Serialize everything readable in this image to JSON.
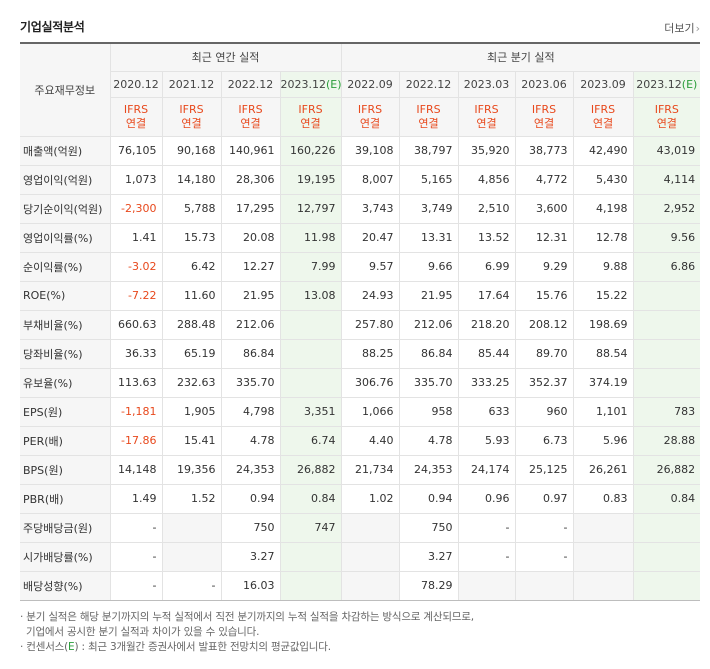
{
  "header": {
    "title": "기업실적분석",
    "more": "더보기",
    "more_arrow": "›"
  },
  "table": {
    "corner_label": "주요재무정보",
    "groups": {
      "annual": "최근 연간 실적",
      "quarterly": "최근 분기 실적"
    },
    "periods": [
      "2020.12",
      "2021.12",
      "2022.12",
      "2023.12",
      "2022.09",
      "2022.12",
      "2023.03",
      "2023.06",
      "2023.09",
      "2023.12"
    ],
    "estimate_mark": "(E)",
    "ifrs": {
      "line1": "IFRS",
      "line2": "연결"
    },
    "rows": [
      {
        "label": "매출액(억원)",
        "values": [
          "76,105",
          "90,168",
          "140,961",
          "160,226",
          "39,108",
          "38,797",
          "35,920",
          "38,773",
          "42,490",
          "43,019"
        ]
      },
      {
        "label": "영업이익(억원)",
        "values": [
          "1,073",
          "14,180",
          "28,306",
          "19,195",
          "8,007",
          "5,165",
          "4,856",
          "4,772",
          "5,430",
          "4,114"
        ]
      },
      {
        "label": "당기순이익(억원)",
        "values": [
          "-2,300",
          "5,788",
          "17,295",
          "12,797",
          "3,743",
          "3,749",
          "2,510",
          "3,600",
          "4,198",
          "2,952"
        ]
      },
      {
        "label": "영업이익률(%)",
        "values": [
          "1.41",
          "15.73",
          "20.08",
          "11.98",
          "20.47",
          "13.31",
          "13.52",
          "12.31",
          "12.78",
          "9.56"
        ]
      },
      {
        "label": "순이익률(%)",
        "values": [
          "-3.02",
          "6.42",
          "12.27",
          "7.99",
          "9.57",
          "9.66",
          "6.99",
          "9.29",
          "9.88",
          "6.86"
        ]
      },
      {
        "label": "ROE(%)",
        "values": [
          "-7.22",
          "11.60",
          "21.95",
          "13.08",
          "24.93",
          "21.95",
          "17.64",
          "15.76",
          "15.22",
          ""
        ]
      },
      {
        "label": "부채비율(%)",
        "values": [
          "660.63",
          "288.48",
          "212.06",
          "",
          "257.80",
          "212.06",
          "218.20",
          "208.12",
          "198.69",
          ""
        ]
      },
      {
        "label": "당좌비율(%)",
        "values": [
          "36.33",
          "65.19",
          "86.84",
          "",
          "88.25",
          "86.84",
          "85.44",
          "89.70",
          "88.54",
          ""
        ]
      },
      {
        "label": "유보율(%)",
        "values": [
          "113.63",
          "232.63",
          "335.70",
          "",
          "306.76",
          "335.70",
          "333.25",
          "352.37",
          "374.19",
          ""
        ]
      },
      {
        "label": "EPS(원)",
        "values": [
          "-1,181",
          "1,905",
          "4,798",
          "3,351",
          "1,066",
          "958",
          "633",
          "960",
          "1,101",
          "783"
        ]
      },
      {
        "label": "PER(배)",
        "values": [
          "-17.86",
          "15.41",
          "4.78",
          "6.74",
          "4.40",
          "4.78",
          "5.93",
          "6.73",
          "5.96",
          "28.88"
        ]
      },
      {
        "label": "BPS(원)",
        "values": [
          "14,148",
          "19,356",
          "24,353",
          "26,882",
          "21,734",
          "24,353",
          "24,174",
          "25,125",
          "26,261",
          "26,882"
        ]
      },
      {
        "label": "PBR(배)",
        "values": [
          "1.49",
          "1.52",
          "0.94",
          "0.84",
          "1.02",
          "0.94",
          "0.96",
          "0.97",
          "0.83",
          "0.84"
        ]
      },
      {
        "label": "주당배당금(원)",
        "values": [
          "-",
          "",
          "750",
          "747",
          "",
          "750",
          "-",
          "-",
          "",
          ""
        ]
      },
      {
        "label": "시가배당률(%)",
        "values": [
          "-",
          "",
          "3.27",
          "",
          "",
          "3.27",
          "-",
          "-",
          "",
          ""
        ]
      },
      {
        "label": "배당성향(%)",
        "values": [
          "-",
          "-",
          "16.03",
          "",
          "",
          "78.29",
          "",
          "",
          "",
          ""
        ]
      }
    ]
  },
  "notes": {
    "line1": "· 분기 실적은 해당 분기까지의 누적 실적에서 직전 분기까지의 누적 실적을 차감하는 방식으로 계산되므로,",
    "line2": "기업에서 공시한 분기 실적과 차이가 있을 수 있습니다.",
    "line3_prefix": "· 컨센서스(",
    "line3_mark": "E",
    "line3_suffix": ") : 최근 3개월간 증권사에서 발표한 전망치의 평균값입니다."
  },
  "colors": {
    "negative": "#e8491d",
    "ifrs": "#e8491d",
    "estimate_mark": "#2a9d3a",
    "estimate_bg": "#eef7ec",
    "header_bg": "#f6f6f6"
  }
}
